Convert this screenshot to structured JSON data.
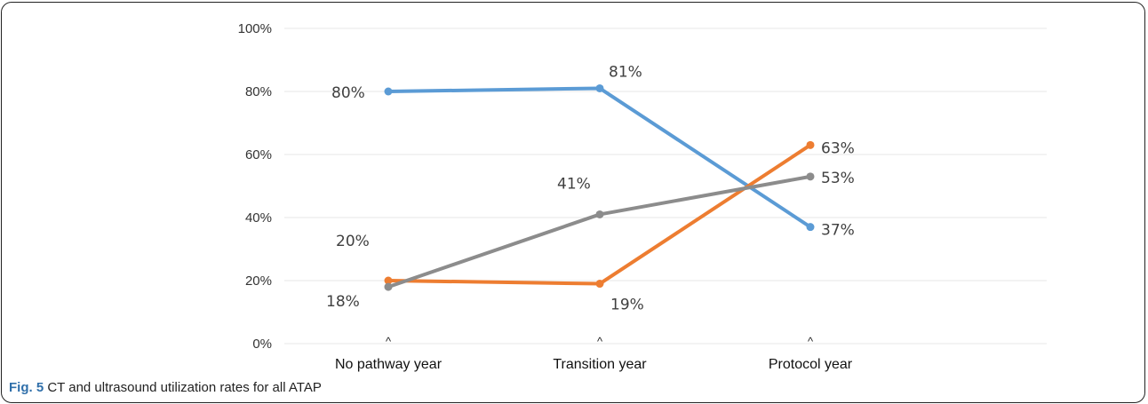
{
  "caption": {
    "label": "Fig. 5",
    "text": "CT and ultrasound utilization rates for all ATAP"
  },
  "colors": {
    "series_1": "#5b9bd5",
    "series_2": "#ed7d31",
    "series_3": "#8c8c8c",
    "grid": "#e7e7e7"
  },
  "chart_data": {
    "type": "line",
    "title": "",
    "xlabel": "",
    "ylabel": "",
    "categories": [
      "No pathway year",
      "Transition year",
      "Protocol year"
    ],
    "category_markers": [
      "^",
      "^",
      "^"
    ],
    "y_ticks": [
      "0%",
      "20%",
      "40%",
      "60%",
      "80%",
      "100%"
    ],
    "ylim": [
      0,
      100
    ],
    "grid": true,
    "legend": "none",
    "series": [
      {
        "values": [
          80,
          81,
          37
        ],
        "labels": [
          "80%",
          "81%",
          "37%"
        ],
        "color": "#5b9bd5"
      },
      {
        "values": [
          20,
          19,
          63
        ],
        "labels": [
          "20%",
          "19%",
          "63%"
        ],
        "color": "#ed7d31"
      },
      {
        "values": [
          18,
          41,
          53
        ],
        "labels": [
          "18%",
          "41%",
          "53%"
        ],
        "color": "#8c8c8c"
      }
    ]
  }
}
